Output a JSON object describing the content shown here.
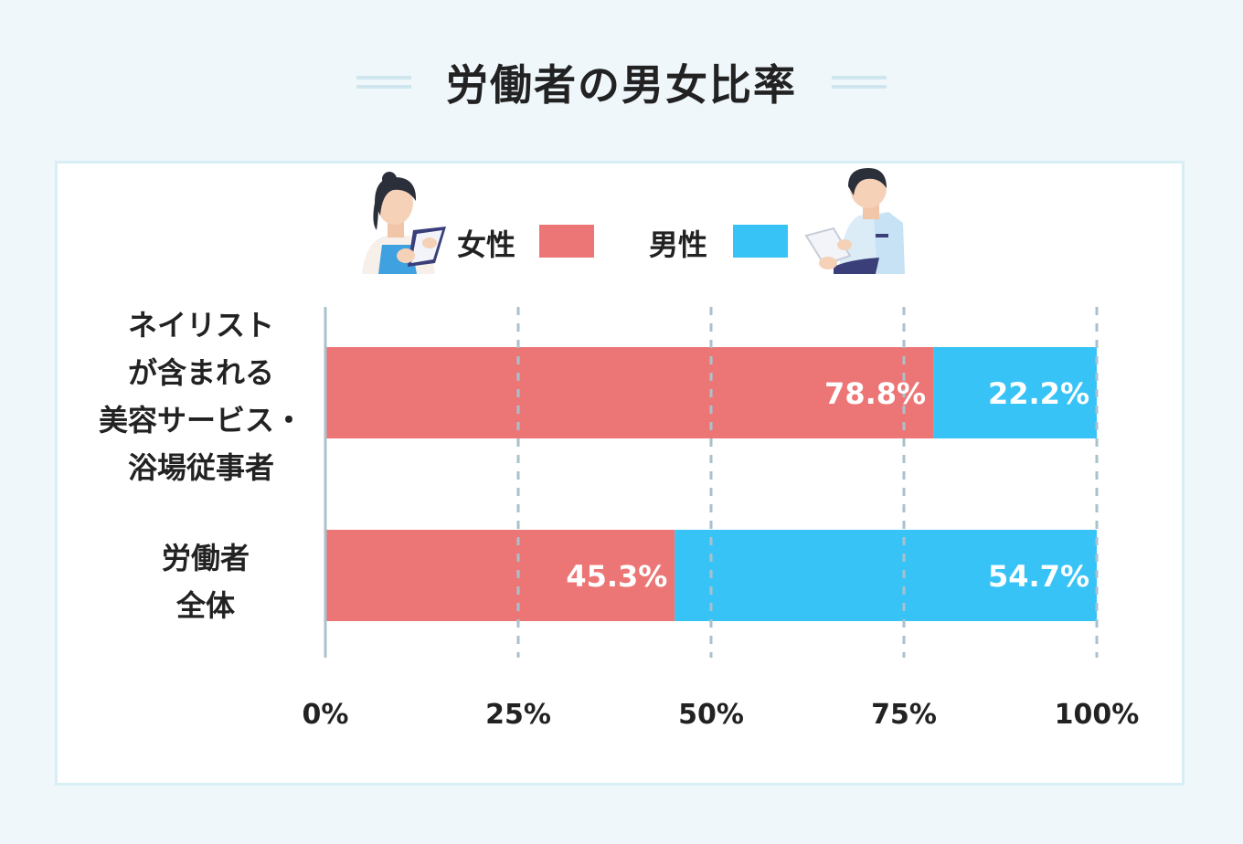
{
  "title": "労働者の男女比率",
  "legend": {
    "female_label": "女性",
    "male_label": "男性"
  },
  "colors": {
    "female": "#ec7676",
    "male": "#38c3f7",
    "axis": "#a9c1cc",
    "grid": "#a9c1cc"
  },
  "categories": [
    {
      "lines": [
        "ネイリスト",
        "が含まれる",
        "美容サービス・",
        "浴場従事者"
      ]
    },
    {
      "lines": [
        "労働者",
        "全体"
      ]
    }
  ],
  "chart_data": {
    "type": "bar",
    "orientation": "horizontal",
    "stacked": true,
    "categories": [
      "ネイリストが含まれる美容サービス・浴場従事者",
      "労働者全体"
    ],
    "series": [
      {
        "name": "女性",
        "values": [
          78.8,
          45.3
        ],
        "labels": [
          "78.8%",
          "45.3%"
        ]
      },
      {
        "name": "男性",
        "values": [
          22.2,
          54.7
        ],
        "labels": [
          "22.2%",
          "54.7%"
        ]
      }
    ],
    "xlim": [
      0,
      100
    ],
    "xticks": [
      "0%",
      "25%",
      "50%",
      "75%",
      "100%"
    ],
    "grid": true,
    "legend_position": "top"
  }
}
